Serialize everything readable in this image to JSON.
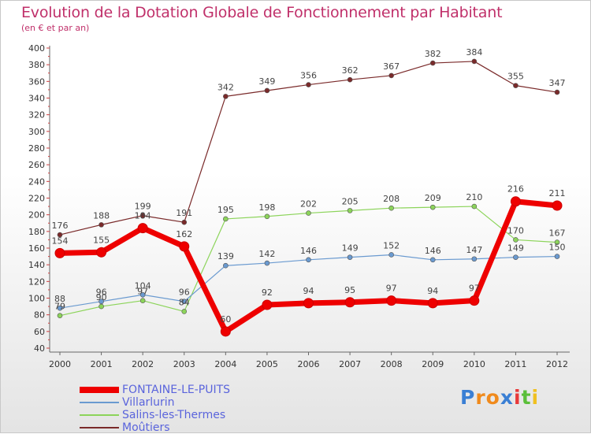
{
  "brand": {
    "chars": [
      "P",
      "r",
      "o",
      "x",
      "i",
      "t",
      "i"
    ],
    "colors": [
      "#3a7fd4",
      "#f08a1c",
      "#f08a1c",
      "#3a7fd4",
      "#e83a3a",
      "#5bbf3a",
      "#f0c020"
    ]
  },
  "chart_data": {
    "type": "line",
    "title": "Evolution de la Dotation Globale de Fonctionnement par Habitant",
    "subtitle": "(en € et par an)",
    "x": [
      "2000",
      "2001",
      "2002",
      "2003",
      "2004",
      "2005",
      "2006",
      "2007",
      "2008",
      "2009",
      "2010",
      "2011",
      "2012"
    ],
    "ylim": [
      40,
      400
    ],
    "yticks": [
      40,
      60,
      80,
      100,
      120,
      140,
      160,
      180,
      200,
      220,
      240,
      260,
      280,
      300,
      320,
      340,
      360,
      380,
      400
    ],
    "grid": false,
    "legend_position": "bottom-left",
    "series": [
      {
        "name": "Moûtiers",
        "color": "#7a2a2a",
        "values": [
          176,
          188,
          199,
          191,
          342,
          349,
          356,
          362,
          367,
          382,
          384,
          355,
          347
        ]
      },
      {
        "name": "Salins-les-Thermes",
        "color": "#8cd45a",
        "values": [
          79,
          90,
          97,
          84,
          195,
          198,
          202,
          205,
          208,
          209,
          210,
          170,
          167
        ]
      },
      {
        "name": "Villarlurin",
        "color": "#6a9ad0",
        "values": [
          88,
          96,
          104,
          96,
          139,
          142,
          146,
          149,
          152,
          146,
          147,
          149,
          150
        ]
      },
      {
        "name": "FONTAINE-LE-PUITS",
        "color": "#ee0000",
        "values": [
          154,
          155,
          184,
          162,
          60,
          92,
          94,
          95,
          97,
          94,
          97,
          216,
          211
        ]
      }
    ]
  }
}
